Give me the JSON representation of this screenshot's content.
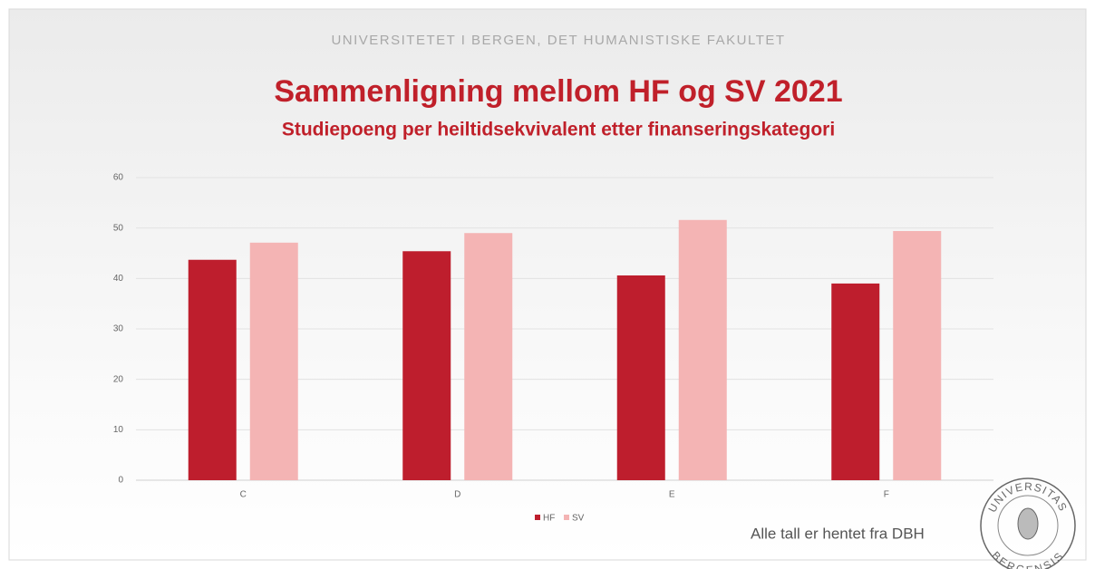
{
  "header": "UNIVERSITETET I BERGEN, DET HUMANISTISKE FAKULTET",
  "footer": "Alle tall er hentet fra DBH",
  "logo": {
    "top": "UNIVERSITAS",
    "bottom": "BERGENSIS"
  },
  "chart_data": {
    "type": "bar",
    "title": "Sammenligning mellom HF og SV 2021",
    "subtitle": "Studiepoeng per heiltidsekvivalent etter finanseringskategori",
    "categories": [
      "C",
      "D",
      "E",
      "F"
    ],
    "series": [
      {
        "name": "HF",
        "color": "#be1e2d",
        "values": [
          43.7,
          45.4,
          40.6,
          39.0
        ]
      },
      {
        "name": "SV",
        "color": "#f4b4b4",
        "values": [
          47.1,
          49.0,
          51.6,
          49.4
        ]
      }
    ],
    "ylim": [
      0,
      60
    ],
    "yticks": [
      0,
      10,
      20,
      30,
      40,
      50,
      60
    ],
    "grid": true,
    "legend": "bottom"
  }
}
